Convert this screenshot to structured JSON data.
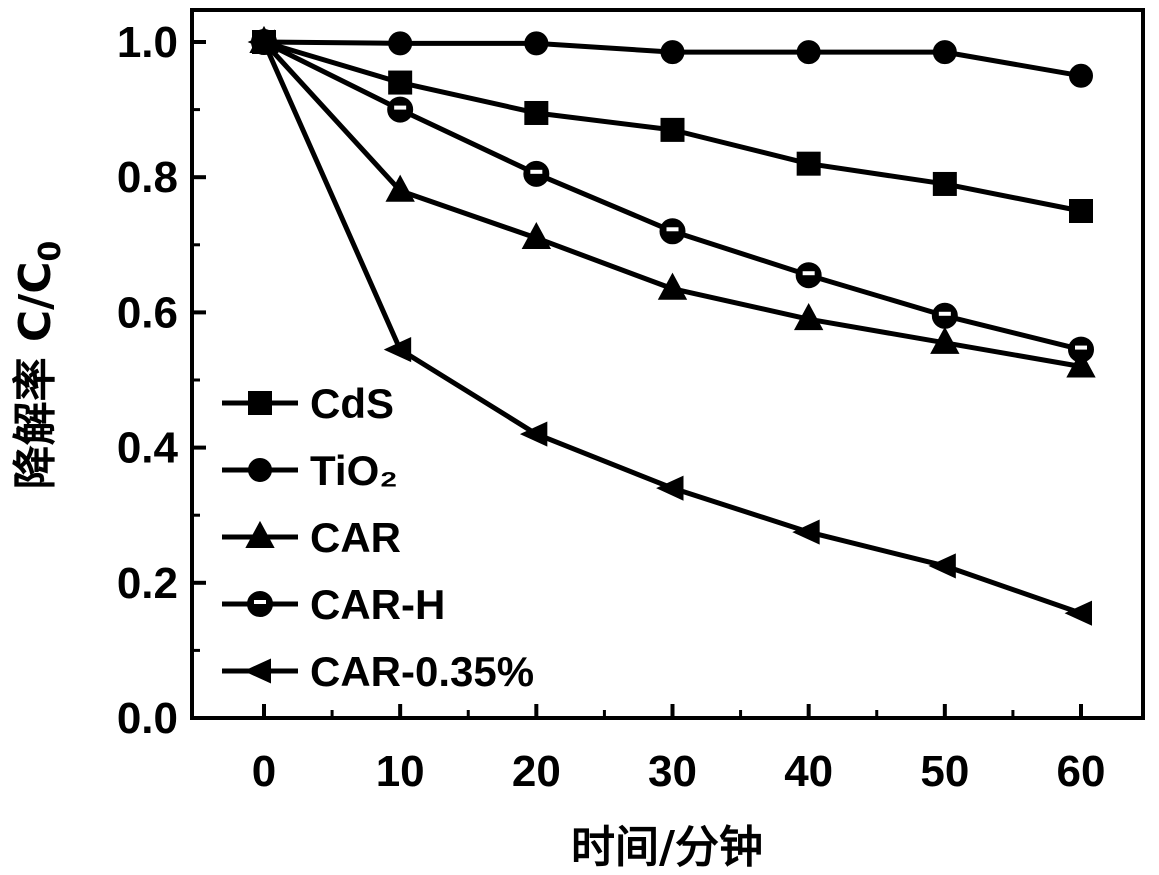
{
  "chart_data": {
    "type": "line",
    "title": "",
    "xlabel": "时间/分钟",
    "ylabel": "降解率 C/C",
    "ylabel_sub": "0",
    "xlim": [
      -5,
      64
    ],
    "ylim": [
      0.0,
      1.0
    ],
    "x_ticks": [
      "0",
      "10",
      "20",
      "30",
      "40",
      "50",
      "60"
    ],
    "y_ticks": [
      "0.0",
      "0.2",
      "0.4",
      "0.6",
      "0.8",
      "1.0"
    ],
    "x": [
      0,
      10,
      20,
      30,
      40,
      50,
      60
    ],
    "grid": false,
    "legend_position": "bottom-left",
    "line_color": "#000000",
    "series": [
      {
        "name": "CdS",
        "marker": "square",
        "values": [
          1.0,
          0.94,
          0.895,
          0.87,
          0.82,
          0.79,
          0.75
        ]
      },
      {
        "name": "TiO₂",
        "marker": "circle",
        "values": [
          1.0,
          0.998,
          0.998,
          0.985,
          0.985,
          0.985,
          0.95
        ]
      },
      {
        "name": "CAR",
        "marker": "triangle-up",
        "values": [
          1.0,
          0.78,
          0.71,
          0.635,
          0.59,
          0.555,
          0.52
        ]
      },
      {
        "name": "CAR-H",
        "marker": "circle-half",
        "values": [
          1.0,
          0.9,
          0.805,
          0.72,
          0.655,
          0.595,
          0.545
        ]
      },
      {
        "name": "CAR-0.35%",
        "marker": "triangle-left",
        "values": [
          1.0,
          0.545,
          0.42,
          0.34,
          0.275,
          0.225,
          0.155
        ]
      }
    ]
  }
}
